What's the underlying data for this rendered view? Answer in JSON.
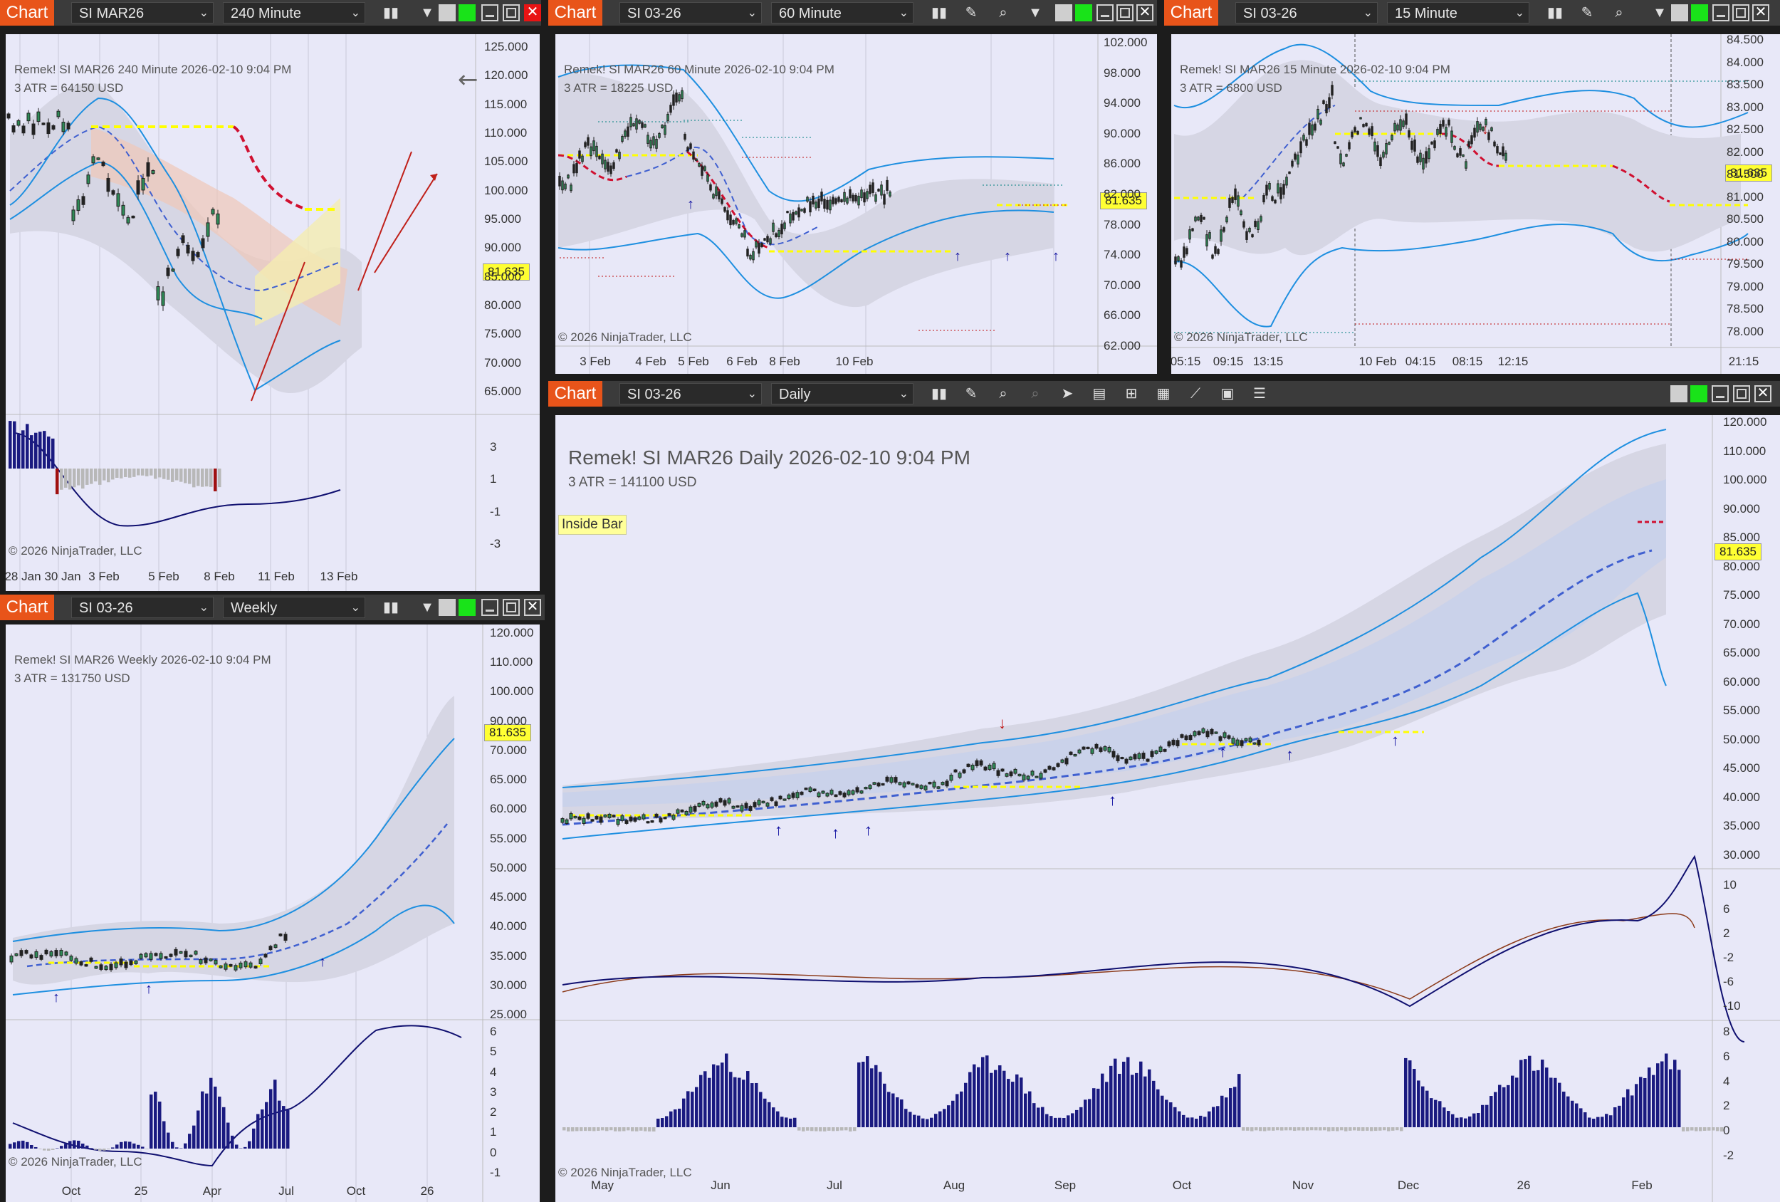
{
  "panels": {
    "p240": {
      "label": "Chart",
      "instrument": "SI MAR26",
      "interval": "240 Minute",
      "title": "Remek!  SI MAR26  240 Minute  2026-02-10 9:04 PM",
      "atr": "3 ATR = 64150 USD",
      "copyright": "© 2026 NinjaTrader, LLC",
      "price": "81.635",
      "y_labels": [
        "125.000",
        "120.000",
        "115.000",
        "110.000",
        "105.000",
        "100.000",
        "95.000",
        "90.000",
        "85.000",
        "80.000",
        "75.000",
        "70.000",
        "65.000"
      ],
      "osc_labels": [
        "3",
        "1",
        "-1",
        "-3"
      ],
      "x_labels": [
        "28 Jan",
        "30 Jan",
        "3 Feb",
        "5 Feb",
        "8 Feb",
        "11 Feb",
        "13 Feb"
      ]
    },
    "p60": {
      "label": "Chart",
      "instrument": "SI 03-26",
      "interval": "60 Minute",
      "title": "Remek!  SI MAR26  60 Minute  2026-02-10 9:04 PM",
      "atr": "3 ATR = 18225 USD",
      "copyright": "© 2026 NinjaTrader, LLC",
      "price": "81.635",
      "y_labels": [
        "102.000",
        "98.000",
        "94.000",
        "90.000",
        "86.000",
        "82.000",
        "78.000",
        "74.000",
        "70.000",
        "66.000",
        "62.000"
      ],
      "x_labels": [
        "3 Feb",
        "4 Feb",
        "5 Feb",
        "6 Feb",
        "8 Feb",
        "10 Feb"
      ]
    },
    "p15": {
      "label": "Chart",
      "instrument": "SI 03-26",
      "interval": "15 Minute",
      "title": "Remek!  SI MAR26  15 Minute  2026-02-10 9:04 PM",
      "atr": "3 ATR = 6800 USD",
      "copyright": "© 2026 NinjaTrader, LLC",
      "price": "81.635",
      "y_labels": [
        "84.500",
        "84.000",
        "83.500",
        "83.000",
        "82.500",
        "82.000",
        "81.500",
        "81.000",
        "80.500",
        "80.000",
        "79.500",
        "79.000",
        "78.500",
        "78.000"
      ],
      "x_labels": [
        "05:15",
        "09:15",
        "13:15",
        "10 Feb",
        "04:15",
        "08:15",
        "12:15",
        "21:15"
      ]
    },
    "pweekly": {
      "label": "Chart",
      "instrument": "SI 03-26",
      "interval": "Weekly",
      "title": "Remek!  SI MAR26  Weekly  2026-02-10 9:04 PM",
      "atr": "3 ATR = 131750 USD",
      "copyright": "© 2026 NinjaTrader, LLC",
      "price": "81.635",
      "y_labels": [
        "120.000",
        "110.000",
        "100.000",
        "90.000",
        "70.000",
        "65.000",
        "60.000",
        "55.000",
        "50.000",
        "45.000",
        "40.000",
        "35.000",
        "30.000",
        "25.000"
      ],
      "osc_labels": [
        "6",
        "5",
        "4",
        "3",
        "2",
        "1",
        "0",
        "-1"
      ],
      "x_labels": [
        "Oct",
        "25",
        "Apr",
        "Jul",
        "Oct",
        "26"
      ]
    },
    "pdaily": {
      "label": "Chart",
      "instrument": "SI 03-26",
      "interval": "Daily",
      "title": "Remek!  SI MAR26  Daily  2026-02-10 9:04 PM",
      "atr": "3 ATR = 141100 USD",
      "badge": "Inside Bar",
      "copyright": "© 2026 NinjaTrader, LLC",
      "price": "81.635",
      "y_labels": [
        "120.000",
        "110.000",
        "100.000",
        "90.000",
        "85.000",
        "80.000",
        "75.000",
        "70.000",
        "65.000",
        "60.000",
        "55.000",
        "50.000",
        "45.000",
        "40.000",
        "35.000",
        "30.000"
      ],
      "osc1_labels": [
        "10",
        "6",
        "2",
        "-2",
        "-6",
        "-10"
      ],
      "osc2_labels": [
        "8",
        "6",
        "4",
        "2",
        "0",
        "-2"
      ],
      "x_labels": [
        "May",
        "Jun",
        "Jul",
        "Aug",
        "Sep",
        "Oct",
        "Nov",
        "Dec",
        "26",
        "Feb"
      ]
    }
  },
  "colors": {
    "accent": "#e8541a",
    "plot_bg": "#e8e8f8",
    "band": "#1e8fe0",
    "avg": "#4060d0",
    "up_arrow": "#1010a0",
    "down_arrow": "#c01010",
    "histogram": "#1a1a80",
    "price_tag": "#ffff33"
  },
  "icons": [
    "bar-style-icon",
    "dropdown-icon",
    "drawing-tool-icon",
    "zoom-icon",
    "pointer-icon",
    "data-box-icon",
    "properties-icon",
    "indicators-icon",
    "strategies-icon",
    "template-icon",
    "list-icon"
  ]
}
